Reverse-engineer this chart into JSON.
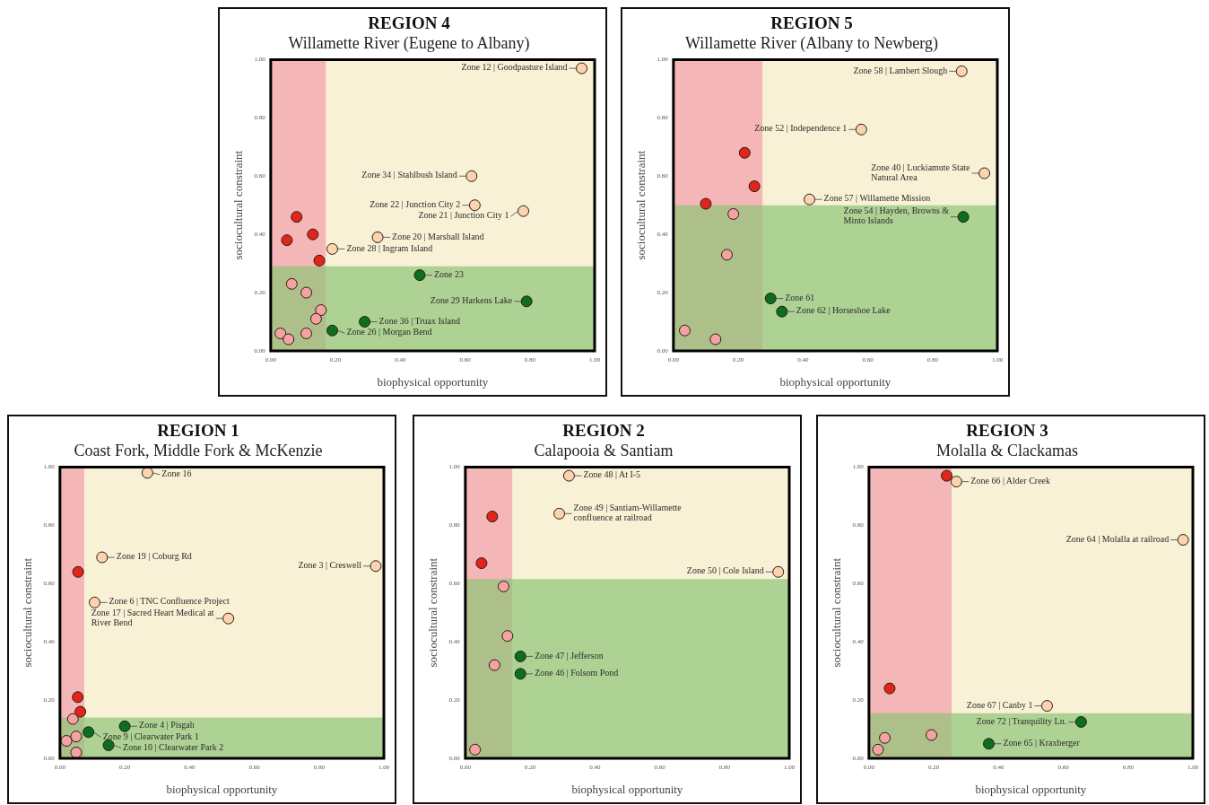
{
  "chart_data": [
    {
      "type": "scatter",
      "title": "REGION 4",
      "subtitle": "Willamette River (Eugene to Albany)",
      "xlabel": "biophysical opportunity",
      "ylabel": "sociocultural constraint",
      "xlim": [
        0,
        1
      ],
      "ylim": [
        0,
        1
      ],
      "xticks": [
        {
          "value": 0,
          "label": "0.00"
        },
        {
          "value": 0.2,
          "label": "0.20"
        },
        {
          "value": 0.4,
          "label": "0.40"
        },
        {
          "value": 0.6,
          "label": "0.60"
        },
        {
          "value": 0.8,
          "label": "0.80"
        },
        {
          "value": 1,
          "label": "1.00"
        }
      ],
      "yticks": [
        {
          "value": 0,
          "label": "0.00"
        },
        {
          "value": 0.2,
          "label": "0.20"
        },
        {
          "value": 0.4,
          "label": "0.40"
        },
        {
          "value": 0.6,
          "label": "0.60"
        },
        {
          "value": 0.8,
          "label": "0.80"
        },
        {
          "value": 1,
          "label": "1.00"
        }
      ],
      "marker": "circle",
      "bands": [
        {
          "axis": "x",
          "from": 0.17,
          "to": 1,
          "color": "#f8f1d6"
        },
        {
          "axis": "x",
          "from": 0,
          "to": 0.17,
          "color": "#f4b6b6"
        },
        {
          "axis": "y",
          "from": 0,
          "to": 0.29,
          "color": "#8fc477"
        }
      ],
      "series": [
        {
          "color": "#e0261a",
          "x": [
            0.08,
            0.05,
            0.13,
            0.15
          ],
          "values": [
            0.46,
            0.38,
            0.4,
            0.31
          ]
        },
        {
          "color": "#f4a3a3",
          "x": [
            0.065,
            0.11,
            0.155,
            0.14,
            0.03,
            0.055,
            0.11
          ],
          "values": [
            0.23,
            0.2,
            0.14,
            0.11,
            0.06,
            0.04,
            0.06
          ]
        },
        {
          "color": "#fbd3b0",
          "x": [
            0.96,
            0.62,
            0.63,
            0.19,
            0.33,
            0.78
          ],
          "values": [
            0.97,
            0.6,
            0.5,
            0.35,
            0.39,
            0.48
          ]
        },
        {
          "color": "#0c6e1f",
          "x": [
            0.46,
            0.79,
            0.29,
            0.19
          ],
          "values": [
            0.26,
            0.17,
            0.1,
            0.07
          ]
        }
      ],
      "annotations": [
        {
          "text": "Zone 12 | Goodpasture Island",
          "x": 0.96,
          "y": 0.97
        },
        {
          "text": "Zone 34 | Stahlbush Island",
          "x": 0.62,
          "y": 0.6
        },
        {
          "text": "Zone 22 | Junction City 2",
          "x": 0.63,
          "y": 0.5
        },
        {
          "text": "Zone 28 | Ingram Island",
          "x": 0.19,
          "y": 0.35
        },
        {
          "text": "Zone 20 | Marshall Island",
          "x": 0.33,
          "y": 0.39
        },
        {
          "text": "Zone 21 | Junction City 1",
          "x": 0.78,
          "y": 0.48
        },
        {
          "text": "Zone 23",
          "x": 0.46,
          "y": 0.26
        },
        {
          "text": "Zone 29 Harkens Lake",
          "x": 0.79,
          "y": 0.17
        },
        {
          "text": "Zone 36 | Truax Island",
          "x": 0.29,
          "y": 0.1
        },
        {
          "text": "Zone 26 | Morgan Bend",
          "x": 0.19,
          "y": 0.07
        }
      ]
    },
    {
      "type": "scatter",
      "title": "REGION 5",
      "subtitle": "Willamette River (Albany to Newberg)",
      "xlabel": "biophysical opportunity",
      "ylabel": "sociocultural constraint",
      "xlim": [
        0,
        1
      ],
      "ylim": [
        0,
        1
      ],
      "xticks": [
        {
          "value": 0,
          "label": "0.00"
        },
        {
          "value": 0.2,
          "label": "0.20"
        },
        {
          "value": 0.4,
          "label": "0.40"
        },
        {
          "value": 0.6,
          "label": "0.60"
        },
        {
          "value": 0.8,
          "label": "0.80"
        },
        {
          "value": 1,
          "label": "1.00"
        }
      ],
      "yticks": [
        {
          "value": 0,
          "label": "0.00"
        },
        {
          "value": 0.2,
          "label": "0.20"
        },
        {
          "value": 0.4,
          "label": "0.40"
        },
        {
          "value": 0.6,
          "label": "0.60"
        },
        {
          "value": 0.8,
          "label": "0.80"
        },
        {
          "value": 1,
          "label": "1.00"
        }
      ],
      "marker": "circle",
      "bands": [
        {
          "axis": "x",
          "from": 0.275,
          "to": 1,
          "color": "#f8f1d6"
        },
        {
          "axis": "x",
          "from": 0,
          "to": 0.275,
          "color": "#f4b6b6"
        },
        {
          "axis": "y",
          "from": 0,
          "to": 0.5,
          "color": "#8fc477"
        }
      ],
      "series": [
        {
          "color": "#e0261a",
          "x": [
            0.22,
            0.25,
            0.1
          ],
          "values": [
            0.68,
            0.565,
            0.505
          ]
        },
        {
          "color": "#f4a3a3",
          "x": [
            0.185,
            0.165,
            0.035,
            0.13
          ],
          "values": [
            0.47,
            0.33,
            0.07,
            0.04
          ]
        },
        {
          "color": "#fbd3b0",
          "x": [
            0.89,
            0.58,
            0.96,
            0.42
          ],
          "values": [
            0.96,
            0.76,
            0.61,
            0.52
          ]
        },
        {
          "color": "#0c6e1f",
          "x": [
            0.895,
            0.3,
            0.335
          ],
          "values": [
            0.46,
            0.18,
            0.135
          ]
        }
      ],
      "annotations": [
        {
          "text": "Zone 58 | Lambert Slough",
          "x": 0.89,
          "y": 0.96
        },
        {
          "text": "Zone 52 | Independence 1",
          "x": 0.58,
          "y": 0.76
        },
        {
          "text": "Zone 40 | Luckiamute State Natural Area",
          "x": 0.96,
          "y": 0.61
        },
        {
          "text": "Zone 57 | Willamette Mission",
          "x": 0.42,
          "y": 0.52
        },
        {
          "text": "Zone 54 | Hayden, Browns & Minto Islands",
          "x": 0.895,
          "y": 0.46
        },
        {
          "text": "Zone 61",
          "x": 0.3,
          "y": 0.18
        },
        {
          "text": "Zone 62 | Horseshoe Lake",
          "x": 0.335,
          "y": 0.135
        }
      ]
    },
    {
      "type": "scatter",
      "title": "REGION 1",
      "subtitle": "Coast Fork, Middle Fork & McKenzie",
      "xlabel": "biophysical opportunity",
      "ylabel": "sociocultural constraint",
      "xlim": [
        0,
        1
      ],
      "ylim": [
        0,
        1
      ],
      "xticks": [
        {
          "value": 0,
          "label": "0.00"
        },
        {
          "value": 0.2,
          "label": "0.20"
        },
        {
          "value": 0.4,
          "label": "0.40"
        },
        {
          "value": 0.6,
          "label": "0.60"
        },
        {
          "value": 0.8,
          "label": "0.80"
        },
        {
          "value": 1,
          "label": "1.00"
        }
      ],
      "yticks": [
        {
          "value": 0,
          "label": "0.00"
        },
        {
          "value": 0.2,
          "label": "0.20"
        },
        {
          "value": 0.4,
          "label": "0.40"
        },
        {
          "value": 0.6,
          "label": "0.60"
        },
        {
          "value": 0.8,
          "label": "0.80"
        },
        {
          "value": 1,
          "label": "1.00"
        }
      ],
      "marker": "circle",
      "bands": [
        {
          "axis": "x",
          "from": 0.075,
          "to": 1,
          "color": "#f8f1d6"
        },
        {
          "axis": "x",
          "from": 0,
          "to": 0.075,
          "color": "#f4b6b6"
        },
        {
          "axis": "y",
          "from": 0,
          "to": 0.14,
          "color": "#8fc477"
        }
      ],
      "series": [
        {
          "color": "#e0261a",
          "x": [
            0.056,
            0.055,
            0.063
          ],
          "values": [
            0.64,
            0.21,
            0.16
          ]
        },
        {
          "color": "#f4a3a3",
          "x": [
            0.04,
            0.02,
            0.05,
            0.05
          ],
          "values": [
            0.135,
            0.06,
            0.075,
            0.02
          ]
        },
        {
          "color": "#fbd3b0",
          "x": [
            0.27,
            0.13,
            0.975,
            0.107,
            0.52
          ],
          "values": [
            0.98,
            0.69,
            0.66,
            0.535,
            0.48
          ]
        },
        {
          "color": "#0c6e1f",
          "x": [
            0.2,
            0.088,
            0.15
          ],
          "values": [
            0.11,
            0.09,
            0.045
          ]
        }
      ],
      "annotations": [
        {
          "text": "Zone 16",
          "x": 0.27,
          "y": 0.98
        },
        {
          "text": "Zone 19 | Coburg Rd",
          "x": 0.13,
          "y": 0.69
        },
        {
          "text": "Zone 3 | Creswell",
          "x": 0.975,
          "y": 0.66
        },
        {
          "text": "Zone 6 | TNC Confluence Project",
          "x": 0.107,
          "y": 0.535
        },
        {
          "text": "Zone 17 | Sacred Heart Medical at River Bend",
          "x": 0.52,
          "y": 0.48
        },
        {
          "text": "Zone 4 | Pisgah",
          "x": 0.2,
          "y": 0.11
        },
        {
          "text": "Zone 9 | Clearwater Park 1",
          "x": 0.088,
          "y": 0.09
        },
        {
          "text": "Zone 10 | Clearwater Park 2",
          "x": 0.15,
          "y": 0.045
        }
      ]
    },
    {
      "type": "scatter",
      "title": "REGION 2",
      "subtitle": "Calapooia & Santiam",
      "xlabel": "biophysical opportunity",
      "ylabel": "sociocultural constraint",
      "xlim": [
        0,
        1
      ],
      "ylim": [
        0,
        1
      ],
      "xticks": [
        {
          "value": 0,
          "label": "0.00"
        },
        {
          "value": 0.2,
          "label": "0.20"
        },
        {
          "value": 0.4,
          "label": "0.40"
        },
        {
          "value": 0.6,
          "label": "0.60"
        },
        {
          "value": 0.8,
          "label": "0.80"
        },
        {
          "value": 1,
          "label": "1.00"
        }
      ],
      "yticks": [
        {
          "value": 0,
          "label": "0.00"
        },
        {
          "value": 0.2,
          "label": "0.20"
        },
        {
          "value": 0.4,
          "label": "0.40"
        },
        {
          "value": 0.6,
          "label": "0.60"
        },
        {
          "value": 0.8,
          "label": "0.80"
        },
        {
          "value": 1,
          "label": "1.00"
        }
      ],
      "marker": "circle",
      "bands": [
        {
          "axis": "x",
          "from": 0.145,
          "to": 1,
          "color": "#f8f1d6"
        },
        {
          "axis": "x",
          "from": 0,
          "to": 0.145,
          "color": "#f4b6b6"
        },
        {
          "axis": "y",
          "from": 0,
          "to": 0.615,
          "color": "#8fc477"
        }
      ],
      "series": [
        {
          "color": "#e0261a",
          "x": [
            0.083,
            0.05
          ],
          "values": [
            0.83,
            0.67
          ]
        },
        {
          "color": "#f4a3a3",
          "x": [
            0.118,
            0.13,
            0.09,
            0.03
          ],
          "values": [
            0.59,
            0.42,
            0.32,
            0.03
          ]
        },
        {
          "color": "#fbd3b0",
          "x": [
            0.32,
            0.29,
            0.966
          ],
          "values": [
            0.97,
            0.84,
            0.64
          ]
        },
        {
          "color": "#0c6e1f",
          "x": [
            0.17,
            0.17
          ],
          "values": [
            0.35,
            0.29
          ]
        }
      ],
      "annotations": [
        {
          "text": "Zone 48 | At I-5",
          "x": 0.32,
          "y": 0.97
        },
        {
          "text": "Zone 49 | Santiam-Willamette confluence at railroad",
          "x": 0.29,
          "y": 0.84
        },
        {
          "text": "Zone 50 | Cole Island",
          "x": 0.966,
          "y": 0.64
        },
        {
          "text": "Zone 47 | Jefferson",
          "x": 0.17,
          "y": 0.35
        },
        {
          "text": "Zone 46 | Folsom Pond",
          "x": 0.17,
          "y": 0.29
        }
      ]
    },
    {
      "type": "scatter",
      "title": "REGION 3",
      "subtitle": "Molalla & Clackamas",
      "xlabel": "biophysical opportunity",
      "ylabel": "sociocultural constraint",
      "xlim": [
        0,
        1
      ],
      "ylim": [
        0,
        1
      ],
      "xticks": [
        {
          "value": 0,
          "label": "0.00"
        },
        {
          "value": 0.2,
          "label": "0.20"
        },
        {
          "value": 0.4,
          "label": "0.40"
        },
        {
          "value": 0.6,
          "label": "0.60"
        },
        {
          "value": 0.8,
          "label": "0.80"
        },
        {
          "value": 1,
          "label": "1.00"
        }
      ],
      "yticks": [
        {
          "value": 0,
          "label": "0.00"
        },
        {
          "value": 0.2,
          "label": "0.20"
        },
        {
          "value": 0.4,
          "label": "0.40"
        },
        {
          "value": 0.6,
          "label": "0.60"
        },
        {
          "value": 0.8,
          "label": "0.80"
        },
        {
          "value": 1,
          "label": "1.00"
        }
      ],
      "marker": "circle",
      "bands": [
        {
          "axis": "x",
          "from": 0.255,
          "to": 1,
          "color": "#f8f1d6"
        },
        {
          "axis": "x",
          "from": 0,
          "to": 0.255,
          "color": "#f4b6b6"
        },
        {
          "axis": "y",
          "from": 0,
          "to": 0.155,
          "color": "#8fc477"
        }
      ],
      "series": [
        {
          "color": "#e0261a",
          "x": [
            0.24,
            0.064
          ],
          "values": [
            0.97,
            0.24
          ]
        },
        {
          "color": "#f4a3a3",
          "x": [
            0.049,
            0.028,
            0.193
          ],
          "values": [
            0.07,
            0.03,
            0.08
          ]
        },
        {
          "color": "#fbd3b0",
          "x": [
            0.27,
            0.97,
            0.55
          ],
          "values": [
            0.95,
            0.75,
            0.18
          ]
        },
        {
          "color": "#0c6e1f",
          "x": [
            0.655,
            0.37
          ],
          "values": [
            0.125,
            0.05
          ]
        }
      ],
      "annotations": [
        {
          "text": "Zone 66 | Alder Creek",
          "x": 0.27,
          "y": 0.95
        },
        {
          "text": "Zone 64 | Molalla at railroad",
          "x": 0.97,
          "y": 0.75
        },
        {
          "text": "Zone 67 | Canby 1",
          "x": 0.55,
          "y": 0.18
        },
        {
          "text": "Zone 72 | Tranquility Ln.",
          "x": 0.655,
          "y": 0.125
        },
        {
          "text": "Zone 65 | Kraxberger",
          "x": 0.37,
          "y": 0.05
        }
      ]
    }
  ]
}
